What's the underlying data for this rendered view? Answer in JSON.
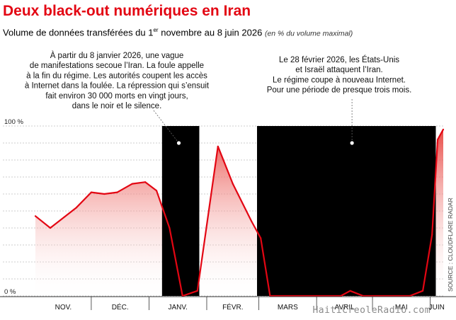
{
  "title": "Deux black-out numériques en Iran",
  "subtitle": {
    "main_before": "Volume de données transférées du 1",
    "sup": "er",
    "main_after": " novembre au 8 juin 2026",
    "note": "(en % du volume maximal)"
  },
  "source": "SOURCE : CLOUDFLARE RADAR",
  "watermark": "HaitiCreoleRadio.com",
  "colors": {
    "accent": "#e30613",
    "blackout": "#000000",
    "grid": "#bfbfbf"
  },
  "chart_data": {
    "type": "area",
    "title": "Deux black-out numériques en Iran",
    "ylabel": "",
    "ylim": [
      0,
      100
    ],
    "y_ticks": [
      {
        "value": 0,
        "label": "0 %"
      },
      {
        "value": 100,
        "label": "100 %"
      }
    ],
    "x_range": [
      "2025-11-01",
      "2026-06-08"
    ],
    "months": [
      {
        "label": "NOV.",
        "start": "2025-11-01",
        "end": "2025-12-01"
      },
      {
        "label": "DÉC.",
        "start": "2025-12-01",
        "end": "2026-01-01"
      },
      {
        "label": "JANV.",
        "start": "2026-01-01",
        "end": "2026-02-01"
      },
      {
        "label": "FÉVR.",
        "start": "2026-02-01",
        "end": "2026-03-01"
      },
      {
        "label": "MARS",
        "start": "2026-03-01",
        "end": "2026-04-01"
      },
      {
        "label": "AVRIL",
        "start": "2026-04-01",
        "end": "2026-05-01"
      },
      {
        "label": "MAI",
        "start": "2026-05-01",
        "end": "2026-06-01"
      },
      {
        "label": "JUIN",
        "start": "2026-06-01",
        "end": "2026-06-08"
      }
    ],
    "blackouts": [
      {
        "start": "2026-01-08",
        "end": "2026-01-28"
      },
      {
        "start": "2026-02-28",
        "end": "2026-06-04"
      }
    ],
    "series": [
      {
        "points": [
          {
            "x": "2025-11-01",
            "y": 47
          },
          {
            "x": "2025-11-09",
            "y": 40
          },
          {
            "x": "2025-11-23",
            "y": 52
          },
          {
            "x": "2025-12-01",
            "y": 61
          },
          {
            "x": "2025-12-08",
            "y": 60
          },
          {
            "x": "2025-12-15",
            "y": 61
          },
          {
            "x": "2025-12-23",
            "y": 66
          },
          {
            "x": "2025-12-30",
            "y": 67
          },
          {
            "x": "2026-01-05",
            "y": 62
          },
          {
            "x": "2026-01-12",
            "y": 40
          },
          {
            "x": "2026-01-19",
            "y": 0
          },
          {
            "x": "2026-01-27",
            "y": 3
          },
          {
            "x": "2026-02-07",
            "y": 88
          },
          {
            "x": "2026-02-15",
            "y": 66
          },
          {
            "x": "2026-02-25",
            "y": 44
          },
          {
            "x": "2026-03-02",
            "y": 34
          },
          {
            "x": "2026-03-07",
            "y": 0
          },
          {
            "x": "2026-04-14",
            "y": 0
          },
          {
            "x": "2026-04-19",
            "y": 3
          },
          {
            "x": "2026-04-26",
            "y": 0
          },
          {
            "x": "2026-05-21",
            "y": 0
          },
          {
            "x": "2026-05-28",
            "y": 3
          },
          {
            "x": "2026-06-02",
            "y": 36
          },
          {
            "x": "2026-06-05",
            "y": 92
          },
          {
            "x": "2026-06-08",
            "y": 98
          }
        ]
      }
    ],
    "annotations": [
      {
        "lines": [
          "À partir du 8 janvier 2026, une vague",
          "de manifestations secoue l’Iran. La foule appelle",
          "à la fin du régime. Les autorités coupent les accès",
          "à Internet dans la foulée. La répression qui s’ensuit",
          "fait environ 30 000 morts en vingt jours,",
          "dans le noir et le silence."
        ]
      },
      {
        "lines": [
          "Le 28 février 2026, les États-Unis",
          "et Israël attaquent l’Iran.",
          "Le régime coupe à nouveau Internet.",
          "Pour une période de presque trois mois."
        ]
      }
    ]
  }
}
